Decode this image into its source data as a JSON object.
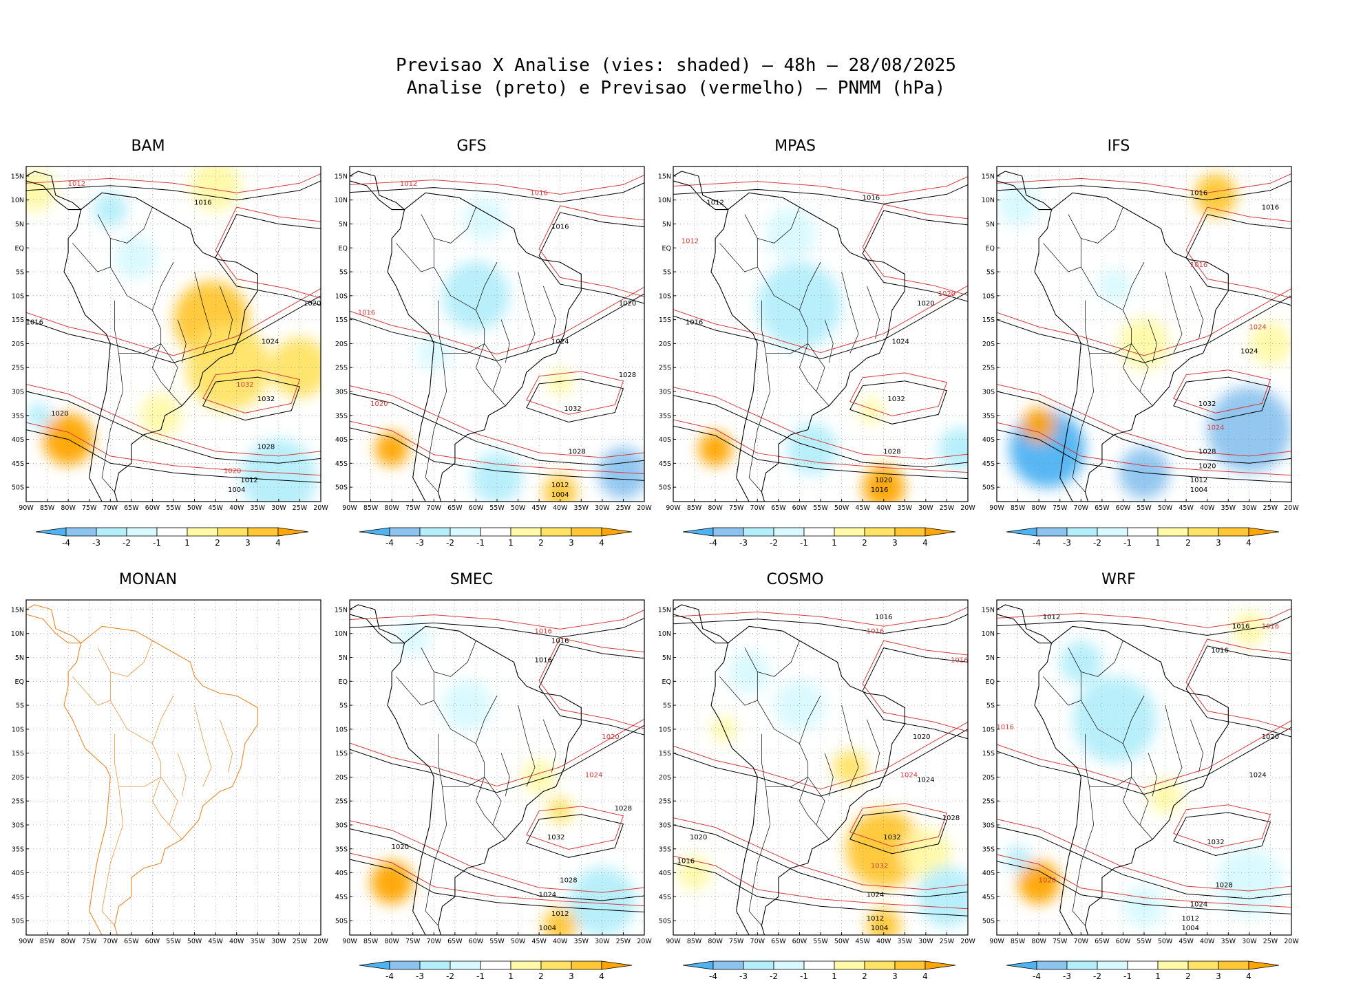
{
  "title": {
    "line1": "Previsao X Analise (vies: shaded) – 48h – 28/08/2025",
    "line2": "Analise (preto) e Previsao (vermelho) – PNMM (hPa)"
  },
  "colors": {
    "analysis_contour": "#000000",
    "forecast_contour": "#d43a3a",
    "coastline_empty": "#e8862a",
    "bias_scale": [
      "#4fb3f2",
      "#8dc4ef",
      "#b4eefb",
      "#d8f9ff",
      "#ffffff",
      "#fff9a8",
      "#ffe365",
      "#ffc733",
      "#ffa500"
    ]
  },
  "chart_data": {
    "type": "heatmap",
    "variable": "PNMM bias (forecast - analysis)",
    "units": "hPa",
    "lead_time": "48h",
    "date": "28/08/2025",
    "colorbar": {
      "labels": [
        "-4",
        "-3",
        "-2",
        "-1",
        "1",
        "2",
        "3",
        "4"
      ],
      "levels": [
        -4,
        -3,
        -2,
        -1,
        1,
        2,
        3,
        4
      ]
    },
    "axes": {
      "x_ticks": [
        "90W",
        "85W",
        "80W",
        "75W",
        "70W",
        "65W",
        "60W",
        "55W",
        "50W",
        "45W",
        "40W",
        "35W",
        "30W",
        "25W",
        "20W"
      ],
      "y_ticks": [
        "15N",
        "10N",
        "5N",
        "EQ",
        "5S",
        "10S",
        "15S",
        "20S",
        "25S",
        "30S",
        "35S",
        "40S",
        "45S",
        "50S"
      ],
      "xlim": [
        -90,
        -20
      ],
      "ylim": [
        -53,
        17
      ]
    },
    "panels": [
      {
        "name": "BAM",
        "has_data": true,
        "bias": [
          {
            "lon": -46,
            "lat": -15,
            "r": 9,
            "v": 3
          },
          {
            "lon": -42,
            "lat": -25,
            "r": 10,
            "v": 2
          },
          {
            "lon": -25,
            "lat": -25,
            "r": 7,
            "v": 2
          },
          {
            "lon": -80,
            "lat": -40,
            "r": 6,
            "v": 4
          },
          {
            "lon": -87,
            "lat": -35,
            "r": 3,
            "v": -2
          },
          {
            "lon": -64,
            "lat": -2,
            "r": 5,
            "v": -1
          },
          {
            "lon": -70,
            "lat": 8,
            "r": 4,
            "v": -2
          },
          {
            "lon": -45,
            "lat": 13,
            "r": 6,
            "v": 1
          },
          {
            "lon": -30,
            "lat": -48,
            "r": 9,
            "v": -2
          },
          {
            "lon": -58,
            "lat": -35,
            "r": 5,
            "v": 1
          },
          {
            "lon": -88,
            "lat": 12,
            "r": 5,
            "v": 1
          }
        ],
        "labels": [
          {
            "lon": -78,
            "lat": 13,
            "text": "1012",
            "c": "red"
          },
          {
            "lon": -48,
            "lat": 9,
            "text": "1016",
            "c": "black"
          },
          {
            "lon": -88,
            "lat": -16,
            "text": "1016",
            "c": "black"
          },
          {
            "lon": -32,
            "lat": -20,
            "text": "1024",
            "c": "black"
          },
          {
            "lon": -33,
            "lat": -32,
            "text": "1032",
            "c": "black"
          },
          {
            "lon": -38,
            "lat": -29,
            "text": "1032",
            "c": "red"
          },
          {
            "lon": -33,
            "lat": -42,
            "text": "1028",
            "c": "black"
          },
          {
            "lon": -41,
            "lat": -47,
            "text": "1020",
            "c": "red"
          },
          {
            "lon": -37,
            "lat": -49,
            "text": "1012",
            "c": "black"
          },
          {
            "lon": -40,
            "lat": -51,
            "text": "1004",
            "c": "black"
          },
          {
            "lon": -22,
            "lat": -12,
            "text": "1020",
            "c": "black"
          },
          {
            "lon": -82,
            "lat": -35,
            "text": "1020",
            "c": "black"
          }
        ]
      },
      {
        "name": "GFS",
        "has_data": true,
        "bias": [
          {
            "lon": -60,
            "lat": -10,
            "r": 8,
            "v": -2
          },
          {
            "lon": -70,
            "lat": -22,
            "r": 4,
            "v": -1
          },
          {
            "lon": -80,
            "lat": -42,
            "r": 4,
            "v": 4
          },
          {
            "lon": -55,
            "lat": -48,
            "r": 6,
            "v": -2
          },
          {
            "lon": -25,
            "lat": -47,
            "r": 6,
            "v": -3
          },
          {
            "lon": -40,
            "lat": -51,
            "r": 4,
            "v": 3
          },
          {
            "lon": -40,
            "lat": -28,
            "r": 3,
            "v": 1
          },
          {
            "lon": -58,
            "lat": 6,
            "r": 5,
            "v": -1
          }
        ],
        "labels": [
          {
            "lon": -76,
            "lat": 13,
            "text": "1012",
            "c": "red"
          },
          {
            "lon": -45,
            "lat": 11,
            "text": "1016",
            "c": "red"
          },
          {
            "lon": -40,
            "lat": 4,
            "text": "1016",
            "c": "black"
          },
          {
            "lon": -86,
            "lat": -14,
            "text": "1016",
            "c": "red"
          },
          {
            "lon": -40,
            "lat": -20,
            "text": "1024",
            "c": "black"
          },
          {
            "lon": -37,
            "lat": -34,
            "text": "1032",
            "c": "black"
          },
          {
            "lon": -36,
            "lat": -43,
            "text": "1028",
            "c": "black"
          },
          {
            "lon": -40,
            "lat": -50,
            "text": "1012",
            "c": "black"
          },
          {
            "lon": -40,
            "lat": -52,
            "text": "1004",
            "c": "black"
          },
          {
            "lon": -24,
            "lat": -12,
            "text": "1020",
            "c": "black"
          },
          {
            "lon": -24,
            "lat": -27,
            "text": "1028",
            "c": "black"
          },
          {
            "lon": -83,
            "lat": -33,
            "text": "1020",
            "c": "red"
          }
        ]
      },
      {
        "name": "MPAS",
        "has_data": true,
        "bias": [
          {
            "lon": -60,
            "lat": -12,
            "r": 10,
            "v": -2
          },
          {
            "lon": -62,
            "lat": 3,
            "r": 6,
            "v": -1
          },
          {
            "lon": -80,
            "lat": -42,
            "r": 4,
            "v": 4
          },
          {
            "lon": -40,
            "lat": -50,
            "r": 5,
            "v": 4
          },
          {
            "lon": -57,
            "lat": -42,
            "r": 6,
            "v": -2
          },
          {
            "lon": -22,
            "lat": -42,
            "r": 5,
            "v": -2
          },
          {
            "lon": -43,
            "lat": -34,
            "r": 3,
            "v": 1
          }
        ],
        "labels": [
          {
            "lon": -80,
            "lat": 9,
            "text": "1012",
            "c": "black"
          },
          {
            "lon": -43,
            "lat": 10,
            "text": "1016",
            "c": "black"
          },
          {
            "lon": -86,
            "lat": 1,
            "text": "1012",
            "c": "red"
          },
          {
            "lon": -85,
            "lat": -16,
            "text": "1016",
            "c": "black"
          },
          {
            "lon": -36,
            "lat": -20,
            "text": "1024",
            "c": "black"
          },
          {
            "lon": -37,
            "lat": -32,
            "text": "1032",
            "c": "black"
          },
          {
            "lon": -38,
            "lat": -43,
            "text": "1028",
            "c": "black"
          },
          {
            "lon": -40,
            "lat": -49,
            "text": "1020",
            "c": "black"
          },
          {
            "lon": -41,
            "lat": -51,
            "text": "1016",
            "c": "black"
          },
          {
            "lon": -25,
            "lat": -10,
            "text": "1020",
            "c": "red"
          },
          {
            "lon": -30,
            "lat": -12,
            "text": "1020",
            "c": "black"
          }
        ]
      },
      {
        "name": "IFS",
        "has_data": true,
        "bias": [
          {
            "lon": -78,
            "lat": -42,
            "r": 9,
            "v": -4
          },
          {
            "lon": -30,
            "lat": -38,
            "r": 10,
            "v": -3
          },
          {
            "lon": -55,
            "lat": -47,
            "r": 6,
            "v": -3
          },
          {
            "lon": -80,
            "lat": -37,
            "r": 4,
            "v": 4
          },
          {
            "lon": -38,
            "lat": 11,
            "r": 5,
            "v": 3
          },
          {
            "lon": -55,
            "lat": -20,
            "r": 6,
            "v": 1
          },
          {
            "lon": -25,
            "lat": -20,
            "r": 5,
            "v": 1
          },
          {
            "lon": -62,
            "lat": -8,
            "r": 4,
            "v": -1
          },
          {
            "lon": -85,
            "lat": 9,
            "r": 5,
            "v": -1
          }
        ],
        "labels": [
          {
            "lon": -42,
            "lat": 11,
            "text": "1016",
            "c": "black"
          },
          {
            "lon": -25,
            "lat": 8,
            "text": "1016",
            "c": "black"
          },
          {
            "lon": -42,
            "lat": -4,
            "text": "1016",
            "c": "red"
          },
          {
            "lon": -28,
            "lat": -17,
            "text": "1024",
            "c": "red"
          },
          {
            "lon": -30,
            "lat": -22,
            "text": "1024",
            "c": "black"
          },
          {
            "lon": -40,
            "lat": -33,
            "text": "1032",
            "c": "black"
          },
          {
            "lon": -38,
            "lat": -38,
            "text": "1024",
            "c": "red"
          },
          {
            "lon": -40,
            "lat": -43,
            "text": "1028",
            "c": "black"
          },
          {
            "lon": -40,
            "lat": -46,
            "text": "1020",
            "c": "black"
          },
          {
            "lon": -42,
            "lat": -49,
            "text": "1012",
            "c": "black"
          },
          {
            "lon": -42,
            "lat": -51,
            "text": "1004",
            "c": "black"
          }
        ]
      },
      {
        "name": "MONAN",
        "has_data": false,
        "bias": [],
        "labels": []
      },
      {
        "name": "SMEC",
        "has_data": true,
        "bias": [
          {
            "lon": -62,
            "lat": -5,
            "r": 6,
            "v": -1
          },
          {
            "lon": -80,
            "lat": -42,
            "r": 5,
            "v": 4
          },
          {
            "lon": -30,
            "lat": -46,
            "r": 8,
            "v": -2
          },
          {
            "lon": -40,
            "lat": -51,
            "r": 4,
            "v": 3
          },
          {
            "lon": -45,
            "lat": -20,
            "r": 4,
            "v": 1
          },
          {
            "lon": -40,
            "lat": -27,
            "r": 3,
            "v": 2
          },
          {
            "lon": -75,
            "lat": 9,
            "r": 4,
            "v": -1
          }
        ],
        "labels": [
          {
            "lon": -40,
            "lat": 8,
            "text": "1016",
            "c": "black"
          },
          {
            "lon": -44,
            "lat": 4,
            "text": "1016",
            "c": "black"
          },
          {
            "lon": -44,
            "lat": 10,
            "text": "1016",
            "c": "red"
          },
          {
            "lon": -32,
            "lat": -20,
            "text": "1024",
            "c": "red"
          },
          {
            "lon": -25,
            "lat": -27,
            "text": "1028",
            "c": "black"
          },
          {
            "lon": -41,
            "lat": -33,
            "text": "1032",
            "c": "black"
          },
          {
            "lon": -38,
            "lat": -42,
            "text": "1028",
            "c": "black"
          },
          {
            "lon": -43,
            "lat": -45,
            "text": "1024",
            "c": "black"
          },
          {
            "lon": -40,
            "lat": -49,
            "text": "1012",
            "c": "black"
          },
          {
            "lon": -43,
            "lat": -52,
            "text": "1004",
            "c": "black"
          },
          {
            "lon": -78,
            "lat": -35,
            "text": "1020",
            "c": "black"
          },
          {
            "lon": -28,
            "lat": -12,
            "text": "1020",
            "c": "red"
          }
        ]
      },
      {
        "name": "COSMO",
        "has_data": true,
        "bias": [
          {
            "lon": -40,
            "lat": -35,
            "r": 9,
            "v": 3
          },
          {
            "lon": -30,
            "lat": -36,
            "r": 6,
            "v": 1
          },
          {
            "lon": -72,
            "lat": 2,
            "r": 5,
            "v": -1
          },
          {
            "lon": -60,
            "lat": -5,
            "r": 6,
            "v": -1
          },
          {
            "lon": -48,
            "lat": -18,
            "r": 4,
            "v": 2
          },
          {
            "lon": -85,
            "lat": -40,
            "r": 4,
            "v": 1
          },
          {
            "lon": -40,
            "lat": -51,
            "r": 4,
            "v": 3
          },
          {
            "lon": -25,
            "lat": -45,
            "r": 7,
            "v": -2
          },
          {
            "lon": -78,
            "lat": -10,
            "r": 3,
            "v": 1
          }
        ],
        "labels": [
          {
            "lon": -40,
            "lat": 13,
            "text": "1016",
            "c": "black"
          },
          {
            "lon": -42,
            "lat": 10,
            "text": "1016",
            "c": "red"
          },
          {
            "lon": -22,
            "lat": 4,
            "text": "1016",
            "c": "red"
          },
          {
            "lon": -31,
            "lat": -12,
            "text": "1020",
            "c": "black"
          },
          {
            "lon": -34,
            "lat": -20,
            "text": "1024",
            "c": "red"
          },
          {
            "lon": -30,
            "lat": -21,
            "text": "1024",
            "c": "black"
          },
          {
            "lon": -38,
            "lat": -33,
            "text": "1032",
            "c": "black"
          },
          {
            "lon": -41,
            "lat": -39,
            "text": "1032",
            "c": "red"
          },
          {
            "lon": -24,
            "lat": -29,
            "text": "1028",
            "c": "black"
          },
          {
            "lon": -42,
            "lat": -45,
            "text": "1024",
            "c": "black"
          },
          {
            "lon": -42,
            "lat": -50,
            "text": "1012",
            "c": "black"
          },
          {
            "lon": -41,
            "lat": -52,
            "text": "1004",
            "c": "black"
          },
          {
            "lon": -84,
            "lat": -33,
            "text": "1020",
            "c": "black"
          },
          {
            "lon": -87,
            "lat": -38,
            "text": "1016",
            "c": "black"
          }
        ]
      },
      {
        "name": "WRF",
        "has_data": true,
        "bias": [
          {
            "lon": -62,
            "lat": -8,
            "r": 10,
            "v": -2
          },
          {
            "lon": -70,
            "lat": 4,
            "r": 5,
            "v": -2
          },
          {
            "lon": -80,
            "lat": -42,
            "r": 5,
            "v": 4
          },
          {
            "lon": -30,
            "lat": -42,
            "r": 8,
            "v": -1
          },
          {
            "lon": -55,
            "lat": -47,
            "r": 5,
            "v": -1
          },
          {
            "lon": -50,
            "lat": -24,
            "r": 4,
            "v": 1
          },
          {
            "lon": -85,
            "lat": -37,
            "r": 3,
            "v": -2
          },
          {
            "lon": -30,
            "lat": 11,
            "r": 4,
            "v": 1
          }
        ],
        "labels": [
          {
            "lon": -77,
            "lat": 13,
            "text": "1012",
            "c": "black"
          },
          {
            "lon": -37,
            "lat": 6,
            "text": "1016",
            "c": "black"
          },
          {
            "lon": -32,
            "lat": 11,
            "text": "1016",
            "c": "black"
          },
          {
            "lon": -25,
            "lat": 11,
            "text": "1016",
            "c": "red"
          },
          {
            "lon": -88,
            "lat": -10,
            "text": "1016",
            "c": "red"
          },
          {
            "lon": -25,
            "lat": -12,
            "text": "1020",
            "c": "black"
          },
          {
            "lon": -28,
            "lat": -20,
            "text": "1024",
            "c": "black"
          },
          {
            "lon": -38,
            "lat": -34,
            "text": "1032",
            "c": "black"
          },
          {
            "lon": -36,
            "lat": -43,
            "text": "1028",
            "c": "black"
          },
          {
            "lon": -42,
            "lat": -47,
            "text": "1024",
            "c": "black"
          },
          {
            "lon": -44,
            "lat": -50,
            "text": "1012",
            "c": "black"
          },
          {
            "lon": -44,
            "lat": -52,
            "text": "1004",
            "c": "black"
          },
          {
            "lon": -78,
            "lat": -42,
            "text": "1020",
            "c": "red"
          }
        ]
      }
    ]
  }
}
